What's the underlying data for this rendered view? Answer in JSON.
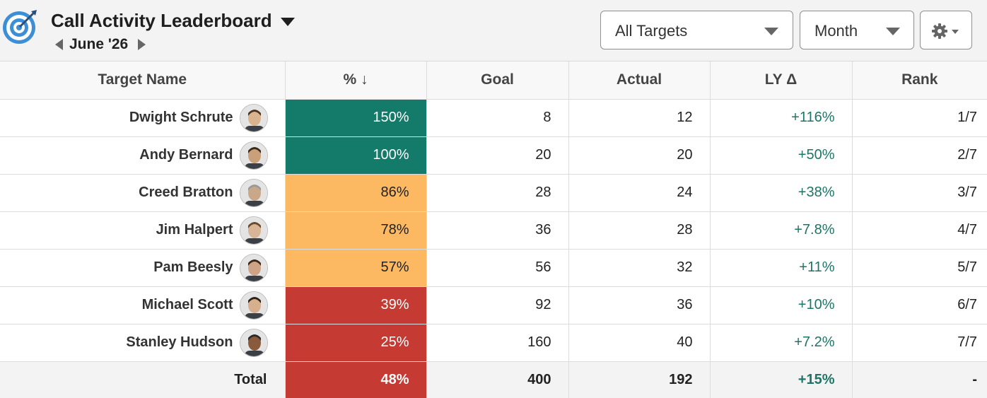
{
  "header": {
    "title": "Call Activity Leaderboard",
    "period": "June '26",
    "targets_select": "All Targets",
    "period_select": "Month",
    "logo_icon": "target-icon",
    "settings_icon": "gear-icon"
  },
  "colors": {
    "high": "#147b6a",
    "mid": "#fdb862",
    "low": "#c63a34",
    "positive": "#1d7566"
  },
  "table": {
    "columns": [
      "Target Name",
      "% ↓",
      "Goal",
      "Actual",
      "LY Δ",
      "Rank"
    ],
    "rows": [
      {
        "name": "Dwight Schrute",
        "pct": "150%",
        "goal": "8",
        "actual": "12",
        "ly": "+116%",
        "rank": "1/7",
        "level": "high"
      },
      {
        "name": "Andy Bernard",
        "pct": "100%",
        "goal": "20",
        "actual": "20",
        "ly": "+50%",
        "rank": "2/7",
        "level": "high"
      },
      {
        "name": "Creed Bratton",
        "pct": "86%",
        "goal": "28",
        "actual": "24",
        "ly": "+38%",
        "rank": "3/7",
        "level": "mid"
      },
      {
        "name": "Jim Halpert",
        "pct": "78%",
        "goal": "36",
        "actual": "28",
        "ly": "+7.8%",
        "rank": "4/7",
        "level": "mid"
      },
      {
        "name": "Pam Beesly",
        "pct": "57%",
        "goal": "56",
        "actual": "32",
        "ly": "+11%",
        "rank": "5/7",
        "level": "mid"
      },
      {
        "name": "Michael Scott",
        "pct": "39%",
        "goal": "92",
        "actual": "36",
        "ly": "+10%",
        "rank": "6/7",
        "level": "low"
      },
      {
        "name": "Stanley Hudson",
        "pct": "25%",
        "goal": "160",
        "actual": "40",
        "ly": "+7.2%",
        "rank": "7/7",
        "level": "low"
      }
    ],
    "total": {
      "label": "Total",
      "pct": "48%",
      "goal": "400",
      "actual": "192",
      "ly": "+15%",
      "rank": "-",
      "level": "low"
    }
  }
}
